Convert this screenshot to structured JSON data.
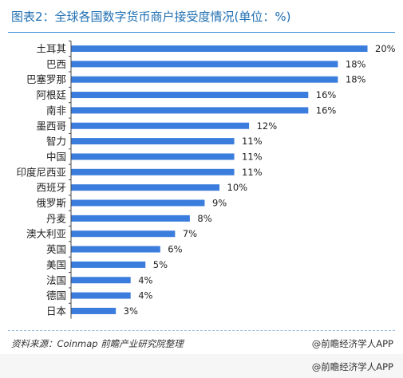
{
  "title": "图表2：全球各国数字货币商户接受度情况(单位：%)",
  "source": "资料来源：Coinmap 前瞻产业研究院整理",
  "credit": "@前瞻经济学人APP",
  "footer_credit": "@前瞻经济学人APP",
  "colors": {
    "bar": "#3b7ddd",
    "title": "#1f6fb2"
  },
  "chart_data": {
    "type": "bar",
    "orientation": "horizontal",
    "categories": [
      "土耳其",
      "巴西",
      "巴塞罗那",
      "阿根廷",
      "南非",
      "墨西哥",
      "智力",
      "中国",
      "印度尼西亚",
      "西班牙",
      "俄罗斯",
      "丹麦",
      "澳大利亚",
      "英国",
      "美国",
      "法国",
      "德国",
      "日本"
    ],
    "values": [
      20,
      18,
      18,
      16,
      16,
      12,
      11,
      11,
      11,
      10,
      9,
      8,
      7,
      6,
      5,
      4,
      4,
      3
    ],
    "value_labels": [
      "20%",
      "18%",
      "18%",
      "16%",
      "16%",
      "12%",
      "11%",
      "11%",
      "11%",
      "10%",
      "9%",
      "8%",
      "7%",
      "6%",
      "5%",
      "4%",
      "4%",
      "3%"
    ],
    "title": "图表2：全球各国数字货币商户接受度情况(单位：%)",
    "xlabel": "",
    "ylabel": "",
    "xlim": [
      0,
      20
    ],
    "grid": false,
    "legend": false
  }
}
